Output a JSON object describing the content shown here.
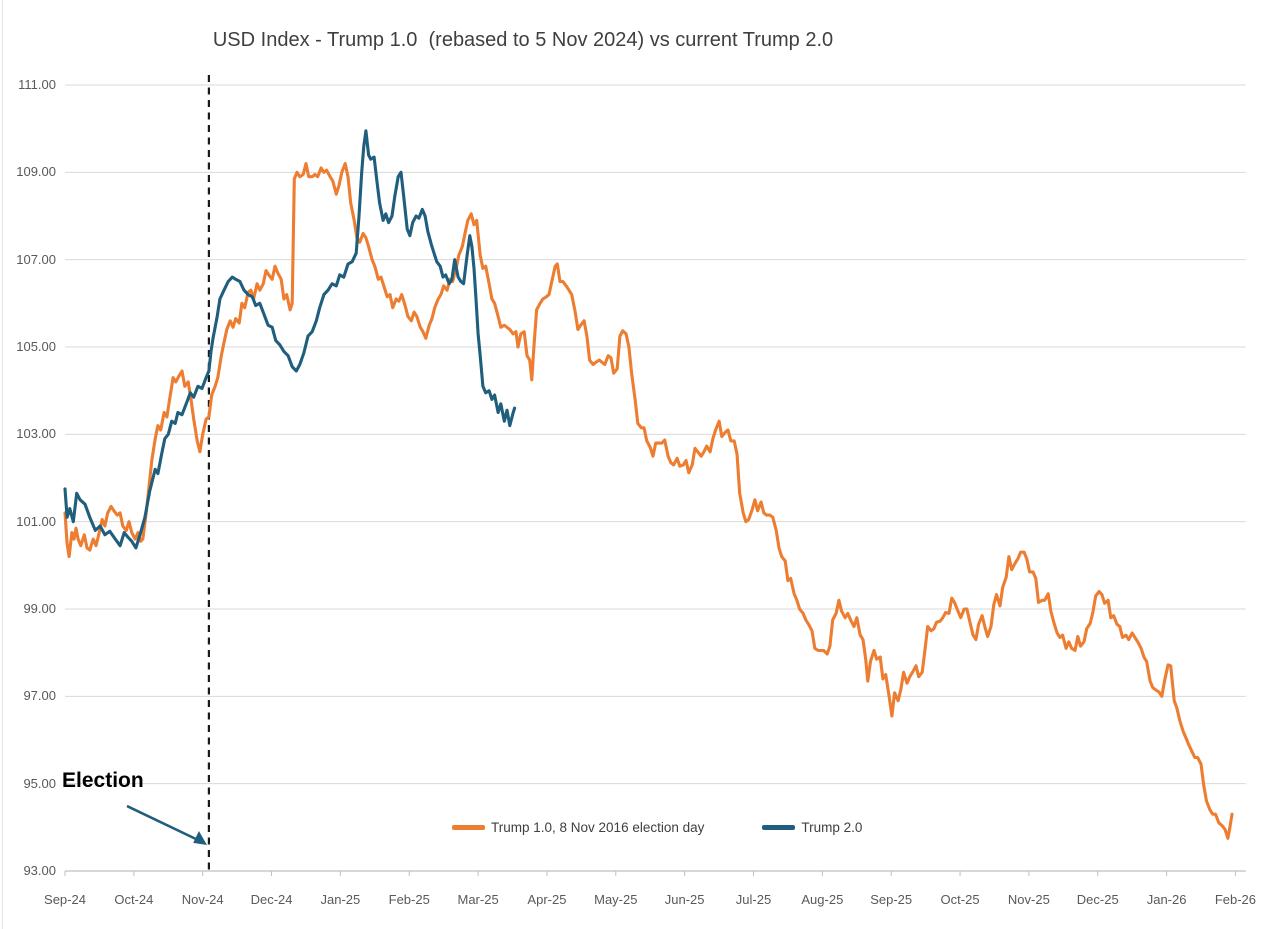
{
  "title": "USD Index - Trump 1.0  (rebased to 5 Nov 2024) vs current Trump 2.0",
  "annotation": {
    "label": "Election",
    "arrow_color": "#205E7D"
  },
  "legend": [
    {
      "label": "Trump 1.0, 8 Nov 2016 election day",
      "color": "#ED7D31"
    },
    {
      "label": "Trump 2.0",
      "color": "#205E7D"
    }
  ],
  "colors": {
    "gridline": "#D9D9D9",
    "axis": "#BFBFBF",
    "tick_text": "#595959",
    "election_dash": "#1a1a1a",
    "background": "#ffffff"
  },
  "chart_data": {
    "type": "line",
    "title": "USD Index - Trump 1.0  (rebased to 5 Nov 2024) vs current Trump 2.0",
    "xlabel": "",
    "ylabel": "",
    "grid": "horizontal",
    "legend_position": "bottom-center",
    "ylim": [
      93,
      111
    ],
    "y_ticks": [
      93,
      95,
      97,
      99,
      101,
      103,
      105,
      107,
      109,
      111
    ],
    "y_tick_format": "0.00",
    "x_unit": "months since Sep-24 tick (1 unit = 1 month)",
    "xlim_months": [
      0,
      17.15
    ],
    "x_tick_labels": [
      "Sep-24",
      "Oct-24",
      "Nov-24",
      "Dec-24",
      "Jan-25",
      "Feb-25",
      "Mar-25",
      "Apr-25",
      "May-25",
      "Jun-25",
      "Jul-25",
      "Aug-25",
      "Sep-25",
      "Oct-25",
      "Nov-25",
      "Dec-25",
      "Jan-26",
      "Feb-26"
    ],
    "election_line_x_months": 2.09,
    "series": [
      {
        "name": "Trump 1.0, 8 Nov 2016 election day",
        "color": "#ED7D31",
        "x": [
          0.0,
          0.03,
          0.06,
          0.1,
          0.13,
          0.16,
          0.19,
          0.23,
          0.28,
          0.32,
          0.36,
          0.41,
          0.45,
          0.49,
          0.54,
          0.58,
          0.62,
          0.67,
          0.71,
          0.76,
          0.8,
          0.84,
          0.89,
          0.93,
          0.97,
          1.02,
          1.06,
          1.1,
          1.13,
          1.18,
          1.22,
          1.26,
          1.31,
          1.35,
          1.39,
          1.44,
          1.48,
          1.53,
          1.57,
          1.61,
          1.66,
          1.7,
          1.74,
          1.79,
          1.83,
          1.87,
          1.92,
          1.96,
          2.0,
          2.05,
          2.09,
          2.13,
          2.18,
          2.22,
          2.27,
          2.31,
          2.35,
          2.4,
          2.44,
          2.48,
          2.53,
          2.57,
          2.61,
          2.66,
          2.7,
          2.74,
          2.79,
          2.83,
          2.88,
          2.92,
          2.96,
          3.01,
          3.05,
          3.09,
          3.14,
          3.18,
          3.22,
          3.27,
          3.3,
          3.33,
          3.37,
          3.41,
          3.46,
          3.5,
          3.54,
          3.59,
          3.63,
          3.67,
          3.72,
          3.76,
          3.8,
          3.85,
          3.89,
          3.94,
          3.98,
          4.02,
          4.07,
          4.11,
          4.15,
          4.2,
          4.24,
          4.28,
          4.33,
          4.37,
          4.41,
          4.46,
          4.5,
          4.55,
          4.59,
          4.63,
          4.68,
          4.72,
          4.76,
          4.81,
          4.85,
          4.89,
          4.94,
          4.98,
          5.03,
          5.07,
          5.11,
          5.16,
          5.2,
          5.24,
          5.29,
          5.33,
          5.37,
          5.42,
          5.46,
          5.5,
          5.55,
          5.59,
          5.63,
          5.68,
          5.72,
          5.77,
          5.81,
          5.85,
          5.9,
          5.94,
          5.98,
          6.03,
          6.07,
          6.11,
          6.16,
          6.2,
          6.24,
          6.29,
          6.33,
          6.38,
          6.42,
          6.46,
          6.51,
          6.55,
          6.58,
          6.62,
          6.67,
          6.71,
          6.75,
          6.78,
          6.81,
          6.85,
          6.9,
          6.94,
          6.99,
          7.03,
          7.07,
          7.12,
          7.15,
          7.19,
          7.23,
          7.28,
          7.32,
          7.36,
          7.41,
          7.45,
          7.49,
          7.54,
          7.58,
          7.62,
          7.67,
          7.71,
          7.76,
          7.8,
          7.84,
          7.89,
          7.93,
          7.97,
          8.02,
          8.06,
          8.1,
          8.15,
          8.19,
          8.23,
          8.28,
          8.32,
          8.37,
          8.41,
          8.45,
          8.5,
          8.54,
          8.58,
          8.63,
          8.67,
          8.71,
          8.76,
          8.8,
          8.84,
          8.89,
          8.93,
          8.98,
          9.02,
          9.06,
          9.11,
          9.15,
          9.19,
          9.24,
          9.28,
          9.32,
          9.37,
          9.41,
          9.45,
          9.5,
          9.54,
          9.59,
          9.63,
          9.67,
          9.72,
          9.76,
          9.8,
          9.85,
          9.89,
          9.93,
          9.98,
          10.02,
          10.06,
          10.11,
          10.15,
          10.19,
          10.24,
          10.28,
          10.33,
          10.37,
          10.41,
          10.46,
          10.5,
          10.54,
          10.59,
          10.63,
          10.67,
          10.72,
          10.76,
          10.8,
          10.85,
          10.89,
          10.94,
          10.98,
          11.02,
          11.07,
          11.11,
          11.15,
          11.2,
          11.24,
          11.28,
          11.33,
          11.37,
          11.41,
          11.46,
          11.5,
          11.55,
          11.59,
          11.63,
          11.66,
          11.7,
          11.75,
          11.79,
          11.84,
          11.88,
          11.92,
          11.97,
          12.01,
          12.05,
          12.1,
          12.14,
          12.18,
          12.23,
          12.27,
          12.31,
          12.36,
          12.4,
          12.45,
          12.49,
          12.53,
          12.58,
          12.62,
          12.66,
          12.71,
          12.75,
          12.79,
          12.84,
          12.88,
          12.92,
          12.97,
          13.01,
          13.06,
          13.1,
          13.14,
          13.19,
          13.23,
          13.27,
          13.32,
          13.36,
          13.4,
          13.45,
          13.49,
          13.53,
          13.58,
          13.62,
          13.67,
          13.71,
          13.75,
          13.8,
          13.84,
          13.88,
          13.93,
          13.97,
          14.01,
          14.06,
          14.1,
          14.14,
          14.19,
          14.23,
          14.28,
          14.32,
          14.36,
          14.41,
          14.45,
          14.49,
          14.54,
          14.58,
          14.62,
          14.67,
          14.71,
          14.75,
          14.8,
          14.84,
          14.89,
          14.93,
          14.97,
          15.02,
          15.06,
          15.1,
          15.15,
          15.19,
          15.23,
          15.28,
          15.32,
          15.36,
          15.41,
          15.45,
          15.5,
          15.54,
          15.58,
          15.63,
          15.67,
          15.71,
          15.76,
          15.8,
          15.84,
          15.89,
          15.93,
          15.97,
          16.02,
          16.06,
          16.11,
          16.15,
          16.19,
          16.24,
          16.28,
          16.32,
          16.37,
          16.41,
          16.45,
          16.5,
          16.54,
          16.58,
          16.63,
          16.67,
          16.71,
          16.76,
          16.8,
          16.85,
          16.89,
          16.92,
          16.95
        ],
        "y": [
          101.2,
          100.5,
          100.2,
          100.75,
          100.6,
          100.85,
          100.6,
          100.45,
          100.7,
          100.4,
          100.35,
          100.6,
          100.45,
          100.7,
          101.05,
          100.9,
          101.2,
          101.35,
          101.25,
          101.15,
          101.2,
          100.9,
          100.8,
          101.0,
          100.75,
          100.6,
          100.75,
          100.55,
          100.6,
          101.2,
          101.8,
          102.4,
          102.9,
          103.2,
          103.1,
          103.5,
          103.4,
          103.9,
          104.3,
          104.2,
          104.35,
          104.45,
          104.1,
          104.2,
          103.8,
          103.35,
          102.85,
          102.6,
          103.0,
          103.35,
          103.4,
          103.9,
          104.1,
          104.3,
          104.8,
          105.1,
          105.4,
          105.6,
          105.45,
          105.65,
          105.55,
          106.0,
          105.9,
          106.25,
          106.3,
          106.1,
          106.45,
          106.3,
          106.45,
          106.75,
          106.65,
          106.55,
          106.85,
          106.7,
          106.55,
          106.1,
          106.2,
          105.85,
          106.0,
          108.85,
          109.0,
          108.9,
          108.95,
          109.2,
          108.9,
          108.9,
          108.95,
          108.9,
          109.1,
          109.0,
          109.05,
          108.9,
          108.8,
          108.5,
          108.7,
          109.0,
          109.2,
          108.9,
          108.3,
          107.9,
          107.5,
          107.4,
          107.6,
          107.5,
          107.3,
          107.0,
          106.85,
          106.55,
          106.6,
          106.4,
          106.15,
          106.2,
          105.9,
          106.1,
          106.05,
          106.2,
          105.95,
          105.7,
          105.6,
          105.8,
          105.7,
          105.45,
          105.35,
          105.2,
          105.5,
          105.65,
          105.9,
          106.1,
          106.2,
          106.4,
          106.3,
          106.55,
          106.5,
          106.8,
          107.1,
          107.3,
          107.6,
          107.9,
          108.05,
          107.8,
          107.9,
          107.1,
          106.8,
          106.85,
          106.45,
          106.1,
          106.0,
          105.7,
          105.45,
          105.5,
          105.45,
          105.4,
          105.3,
          105.35,
          105.0,
          105.3,
          105.35,
          104.8,
          104.7,
          104.25,
          105.0,
          105.85,
          106.0,
          106.1,
          106.15,
          106.2,
          106.5,
          106.85,
          106.9,
          106.5,
          106.5,
          106.4,
          106.3,
          106.2,
          105.8,
          105.4,
          105.5,
          105.6,
          105.25,
          104.7,
          104.6,
          104.65,
          104.7,
          104.65,
          104.6,
          104.8,
          104.75,
          104.4,
          104.5,
          105.25,
          105.37,
          105.3,
          105.0,
          104.4,
          103.8,
          103.25,
          103.15,
          103.15,
          102.85,
          102.7,
          102.5,
          102.8,
          102.8,
          102.8,
          102.87,
          102.5,
          102.35,
          102.3,
          102.45,
          102.27,
          102.3,
          102.4,
          102.12,
          102.3,
          102.68,
          102.6,
          102.5,
          102.6,
          102.73,
          102.6,
          102.9,
          103.1,
          103.3,
          102.95,
          103.05,
          103.1,
          102.85,
          102.85,
          102.55,
          101.65,
          101.2,
          101.0,
          101.05,
          101.27,
          101.5,
          101.25,
          101.45,
          101.2,
          101.15,
          101.15,
          101.1,
          100.8,
          100.4,
          100.2,
          100.1,
          99.65,
          99.7,
          99.35,
          99.2,
          99.0,
          98.9,
          98.75,
          98.65,
          98.5,
          98.1,
          98.05,
          98.05,
          98.05,
          97.97,
          98.15,
          98.75,
          98.9,
          99.2,
          98.95,
          98.8,
          98.9,
          98.75,
          98.6,
          98.8,
          98.4,
          98.3,
          97.85,
          97.35,
          97.8,
          98.05,
          97.85,
          97.9,
          97.4,
          97.5,
          97.0,
          96.55,
          97.08,
          96.9,
          97.15,
          97.55,
          97.3,
          97.45,
          97.55,
          97.7,
          97.45,
          97.55,
          98.05,
          98.6,
          98.5,
          98.55,
          98.7,
          98.72,
          98.8,
          98.92,
          98.9,
          99.25,
          99.15,
          98.95,
          98.8,
          99.0,
          99.0,
          98.72,
          98.4,
          98.3,
          98.65,
          98.85,
          98.6,
          98.37,
          98.6,
          99.1,
          99.33,
          99.07,
          99.5,
          99.73,
          100.2,
          99.9,
          100.05,
          100.15,
          100.3,
          100.3,
          100.15,
          99.85,
          99.85,
          99.7,
          99.15,
          99.2,
          99.2,
          99.35,
          98.95,
          98.7,
          98.45,
          98.35,
          98.4,
          98.1,
          98.25,
          98.1,
          98.05,
          98.37,
          98.15,
          98.25,
          98.55,
          98.67,
          98.93,
          99.3,
          99.4,
          99.33,
          99.13,
          99.2,
          98.8,
          98.85,
          98.65,
          98.6,
          98.35,
          98.4,
          98.3,
          98.45,
          98.35,
          98.25,
          98.1,
          97.9,
          97.8,
          97.35,
          97.2,
          97.15,
          97.1,
          97.0,
          97.35,
          97.72,
          97.7,
          96.9,
          96.73,
          96.45,
          96.2,
          96.05,
          95.9,
          95.73,
          95.6,
          95.6,
          95.45,
          94.95,
          94.6,
          94.4,
          94.3,
          94.3,
          94.1,
          94.05,
          93.95,
          93.75,
          94.0,
          94.3
        ]
      },
      {
        "name": "Trump 2.0",
        "color": "#205E7D",
        "x": [
          0.0,
          0.03,
          0.07,
          0.12,
          0.17,
          0.22,
          0.29,
          0.36,
          0.44,
          0.51,
          0.58,
          0.65,
          0.73,
          0.8,
          0.86,
          0.91,
          0.97,
          1.03,
          1.09,
          1.16,
          1.23,
          1.31,
          1.35,
          1.41,
          1.45,
          1.5,
          1.55,
          1.6,
          1.64,
          1.7,
          1.76,
          1.82,
          1.87,
          1.93,
          1.99,
          2.05,
          2.09,
          2.12,
          2.15,
          2.21,
          2.25,
          2.31,
          2.37,
          2.43,
          2.48,
          2.54,
          2.6,
          2.66,
          2.72,
          2.77,
          2.83,
          2.89,
          2.95,
          3.01,
          3.06,
          3.12,
          3.18,
          3.24,
          3.3,
          3.36,
          3.41,
          3.47,
          3.53,
          3.59,
          3.65,
          3.7,
          3.76,
          3.82,
          3.88,
          3.94,
          3.99,
          4.05,
          4.11,
          4.17,
          4.23,
          4.27,
          4.31,
          4.34,
          4.37,
          4.41,
          4.44,
          4.49,
          4.53,
          4.57,
          4.62,
          4.66,
          4.7,
          4.75,
          4.79,
          4.84,
          4.88,
          4.92,
          4.97,
          5.01,
          5.05,
          5.1,
          5.14,
          5.19,
          5.23,
          5.27,
          5.32,
          5.36,
          5.4,
          5.45,
          5.49,
          5.53,
          5.58,
          5.62,
          5.66,
          5.71,
          5.75,
          5.79,
          5.84,
          5.88,
          5.91,
          5.94,
          5.97,
          6.0,
          6.03,
          6.07,
          6.11,
          6.16,
          6.2,
          6.24,
          6.29,
          6.33,
          6.38,
          6.42,
          6.46,
          6.51,
          6.53
        ],
        "y": [
          101.75,
          101.1,
          101.3,
          101.0,
          101.65,
          101.5,
          101.4,
          101.1,
          100.8,
          100.9,
          100.7,
          100.78,
          100.6,
          100.45,
          100.75,
          100.65,
          100.55,
          100.4,
          100.7,
          101.1,
          101.7,
          102.2,
          102.1,
          102.6,
          102.9,
          103.0,
          103.3,
          103.25,
          103.5,
          103.45,
          103.7,
          103.95,
          103.85,
          104.1,
          104.05,
          104.3,
          104.45,
          104.9,
          105.2,
          105.7,
          106.1,
          106.3,
          106.5,
          106.6,
          106.55,
          106.5,
          106.3,
          106.2,
          106.15,
          105.95,
          106.0,
          105.75,
          105.5,
          105.45,
          105.15,
          105.05,
          104.9,
          104.8,
          104.55,
          104.45,
          104.6,
          104.87,
          105.25,
          105.35,
          105.6,
          105.9,
          106.2,
          106.3,
          106.45,
          106.4,
          106.65,
          106.6,
          106.9,
          106.95,
          107.15,
          108.0,
          109.0,
          109.6,
          109.95,
          109.4,
          109.3,
          109.35,
          108.8,
          108.3,
          107.9,
          108.05,
          107.85,
          108.0,
          108.45,
          108.9,
          109.0,
          108.45,
          107.7,
          107.55,
          107.85,
          108.0,
          107.95,
          108.15,
          108.0,
          107.65,
          107.35,
          107.15,
          106.95,
          106.85,
          106.6,
          106.65,
          106.45,
          106.55,
          107.0,
          106.6,
          106.5,
          106.45,
          107.1,
          107.55,
          107.3,
          106.8,
          106.1,
          105.3,
          104.8,
          104.1,
          103.95,
          104.0,
          103.8,
          103.9,
          103.5,
          103.7,
          103.3,
          103.55,
          103.2,
          103.5,
          103.6
        ]
      }
    ]
  }
}
